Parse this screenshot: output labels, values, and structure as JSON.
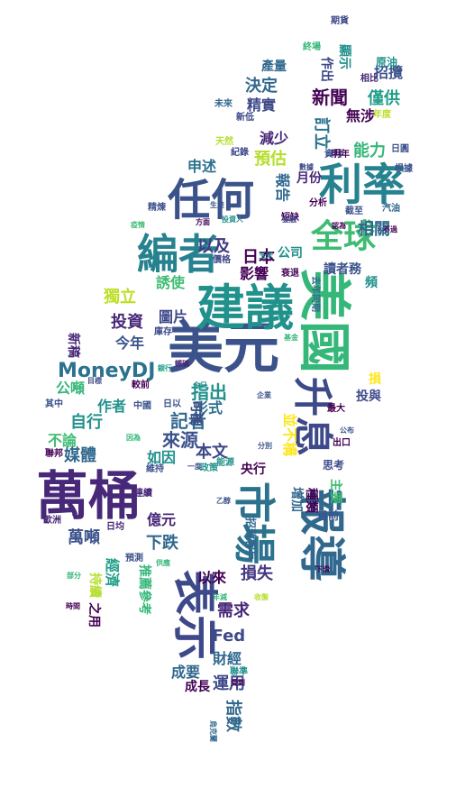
{
  "words": [
    {
      "text": "美元",
      "color": "#3b528b",
      "size": 62
    },
    {
      "text": "萬桶",
      "color": "#482878",
      "size": 58
    },
    {
      "text": "美國",
      "color": "#35b779",
      "size": 58,
      "vertical": true
    },
    {
      "text": "建議",
      "color": "#21918c",
      "size": 54
    },
    {
      "text": "報導",
      "color": "#31688e",
      "size": 52,
      "vertical": true
    },
    {
      "text": "表示",
      "color": "#3e4989",
      "size": 50,
      "vertical": true
    },
    {
      "text": "任何",
      "color": "#3b528b",
      "size": 48
    },
    {
      "text": "利率",
      "color": "#26828e",
      "size": 48
    },
    {
      "text": "市場",
      "color": "#2c728e",
      "size": 46,
      "vertical": true
    },
    {
      "text": "編者",
      "color": "#26828e",
      "size": 46
    },
    {
      "text": "升息",
      "color": "#3e4989",
      "size": 44,
      "vertical": true
    },
    {
      "text": "全球",
      "color": "#3fbc73",
      "size": 36
    },
    {
      "text": "MoneyDJ",
      "color": "#2c728e",
      "size": 22
    },
    {
      "text": "新聞",
      "color": "#440154",
      "size": 20
    },
    {
      "text": "指出",
      "color": "#21918c",
      "size": 20
    },
    {
      "text": "記者",
      "color": "#31688e",
      "size": 20
    },
    {
      "text": "來源",
      "color": "#3b528b",
      "size": 20
    },
    {
      "text": "決定",
      "color": "#31688e",
      "size": 18
    },
    {
      "text": "訂立",
      "color": "#2c728e",
      "size": 18,
      "vertical": true
    },
    {
      "text": "能力",
      "color": "#35b779",
      "size": 18
    },
    {
      "text": "預估",
      "color": "#b5de2b",
      "size": 18
    },
    {
      "text": "投資",
      "color": "#482878",
      "size": 18
    },
    {
      "text": "獨立",
      "color": "#bddf26",
      "size": 18
    },
    {
      "text": "自行",
      "color": "#21918c",
      "size": 18
    },
    {
      "text": "本文",
      "color": "#3e4989",
      "size": 18
    },
    {
      "text": "Fed",
      "color": "#3e4989",
      "size": 18
    },
    {
      "text": "萬噸",
      "color": "#3b528b",
      "size": 18
    },
    {
      "text": "下跌",
      "color": "#31688e",
      "size": 18
    },
    {
      "text": "損失",
      "color": "#443983",
      "size": 18
    },
    {
      "text": "需求",
      "color": "#482878",
      "size": 18
    },
    {
      "text": "指數",
      "color": "#31688e",
      "size": 18,
      "vertical": true
    },
    {
      "text": "運用",
      "color": "#3e4989",
      "size": 18
    },
    {
      "text": "日本",
      "color": "#440154",
      "size": 18
    },
    {
      "text": "以及",
      "color": "#443983",
      "size": 18
    },
    {
      "text": "相關",
      "color": "#31688e",
      "size": 18
    },
    {
      "text": "僅供",
      "color": "#1f9e89",
      "size": 18
    },
    {
      "text": "媒體",
      "color": "#31688e",
      "size": 18
    },
    {
      "text": "招攬",
      "color": "#3b528b",
      "size": 16
    },
    {
      "text": "精實",
      "color": "#3e4989",
      "size": 16
    },
    {
      "text": "無涉",
      "color": "#440154",
      "size": 16
    },
    {
      "text": "減少",
      "color": "#482878",
      "size": 16
    },
    {
      "text": "申述",
      "color": "#2c728e",
      "size": 16
    },
    {
      "text": "報告",
      "color": "#31688e",
      "size": 16,
      "vertical": true
    },
    {
      "text": "影響",
      "color": "#440154",
      "size": 16
    },
    {
      "text": "讀者務",
      "color": "#3b528b",
      "size": 14
    },
    {
      "text": "誘使",
      "color": "#3fbc73",
      "size": 16
    },
    {
      "text": "圖片",
      "color": "#3e4989",
      "size": 16
    },
    {
      "text": "今年",
      "color": "#3b528b",
      "size": 16
    },
    {
      "text": "作者",
      "color": "#21918c",
      "size": 16
    },
    {
      "text": "公噸",
      "color": "#35b779",
      "size": 16
    },
    {
      "text": "形式",
      "color": "#2c728e",
      "size": 16
    },
    {
      "text": "並不構",
      "color": "#fde725",
      "size": 16,
      "vertical": true
    },
    {
      "text": "如因",
      "color": "#21918c",
      "size": 16
    },
    {
      "text": "不論",
      "color": "#3fbc73",
      "size": 16
    },
    {
      "text": "億元",
      "color": "#482878",
      "size": 16
    },
    {
      "text": "以來",
      "color": "#440154",
      "size": 16
    },
    {
      "text": "成要",
      "color": "#31688e",
      "size": 16
    },
    {
      "text": "財經",
      "color": "#31688e",
      "size": 16
    },
    {
      "text": "經濟",
      "color": "#1f9e89",
      "size": 16,
      "vertical": true
    },
    {
      "text": "推薦參考",
      "color": "#35b779",
      "size": 14,
      "vertical": true
    },
    {
      "text": "產量",
      "color": "#31688e",
      "size": 14
    },
    {
      "text": "作出",
      "color": "#3e4989",
      "size": 14,
      "vertical": true
    },
    {
      "text": "顯示",
      "color": "#21918c",
      "size": 14,
      "vertical": true
    },
    {
      "text": "月份",
      "color": "#482878",
      "size": 14
    },
    {
      "text": "公司",
      "color": "#21918c",
      "size": 14
    },
    {
      "text": "央行",
      "color": "#440154",
      "size": 14
    },
    {
      "text": "主要",
      "color": "#3fbc73",
      "size": 14,
      "vertical": true
    },
    {
      "text": "可能",
      "color": "#3e4989",
      "size": 14,
      "vertical": true
    },
    {
      "text": "招致客戶",
      "color": "#31688e",
      "size": 12,
      "vertical": true
    },
    {
      "text": "成長",
      "color": "#440154",
      "size": 14
    },
    {
      "text": "增加",
      "color": "#31688e",
      "size": 14,
      "vertical": true
    },
    {
      "text": "種類",
      "color": "#440154",
      "size": 14,
      "vertical": true
    },
    {
      "text": "投與",
      "color": "#3e4989",
      "size": 14
    },
    {
      "text": "損",
      "color": "#fde725",
      "size": 14
    },
    {
      "text": "頻",
      "color": "#21918c",
      "size": 14
    },
    {
      "text": "新稿",
      "color": "#482878",
      "size": 14,
      "vertical": true
    },
    {
      "text": "之用",
      "color": "#440154",
      "size": 14,
      "vertical": true
    },
    {
      "text": "持續",
      "color": "#b5de2b",
      "size": 14,
      "vertical": true
    },
    {
      "text": "思考",
      "color": "#3e4989",
      "size": 12
    },
    {
      "text": "目前",
      "color": "#3b528b",
      "size": 12
    },
    {
      "text": "期貨",
      "color": "#3e4989",
      "size": 10
    },
    {
      "text": "終場",
      "color": "#35b779",
      "size": 10
    },
    {
      "text": "相比",
      "color": "#482878",
      "size": 10
    },
    {
      "text": "原油",
      "color": "#21918c",
      "size": 12
    },
    {
      "text": "年度",
      "color": "#bddf26",
      "size": 10
    },
    {
      "text": "未來",
      "color": "#31688e",
      "size": 10
    },
    {
      "text": "新低",
      "color": "#3e4989",
      "size": 10
    },
    {
      "text": "天然",
      "color": "#b5de2b",
      "size": 10
    },
    {
      "text": "紀錄",
      "color": "#3e4989",
      "size": 10
    },
    {
      "text": "資料",
      "color": "#3b528b",
      "size": 10
    },
    {
      "text": "日圓",
      "color": "#3b528b",
      "size": 10
    },
    {
      "text": "明年",
      "color": "#440154",
      "size": 10
    },
    {
      "text": "根據",
      "color": "#3b528b",
      "size": 10
    },
    {
      "text": "分析",
      "color": "#440154",
      "size": 10
    },
    {
      "text": "截至",
      "color": "#3b528b",
      "size": 10
    },
    {
      "text": "汽油",
      "color": "#31688e",
      "size": 10
    },
    {
      "text": "精煉",
      "color": "#3b528b",
      "size": 10
    },
    {
      "text": "生產",
      "color": "#3b528b",
      "size": 8
    },
    {
      "text": "疫情",
      "color": "#3fbc73",
      "size": 8
    },
    {
      "text": "投資人",
      "color": "#21918c",
      "size": 8
    },
    {
      "text": "短缺",
      "color": "#440154",
      "size": 10
    },
    {
      "text": "價格",
      "color": "#3e4989",
      "size": 10
    },
    {
      "text": "玉米",
      "color": "#21918c",
      "size": 8
    },
    {
      "text": "衰退",
      "color": "#440154",
      "size": 10
    },
    {
      "text": "認為",
      "color": "#440154",
      "size": 8
    },
    {
      "text": "不過",
      "color": "#440154",
      "size": 8
    },
    {
      "text": "去年同期",
      "color": "#31688e",
      "size": 10,
      "vertical": true
    },
    {
      "text": "庫存",
      "color": "#3e4989",
      "size": 10
    },
    {
      "text": "目標",
      "color": "#3e4989",
      "size": 8
    },
    {
      "text": "較前",
      "color": "#440154",
      "size": 10
    },
    {
      "text": "今日",
      "color": "#21918c",
      "size": 8
    },
    {
      "text": "日以",
      "color": "#3b528b",
      "size": 10
    },
    {
      "text": "中國",
      "color": "#3b528b",
      "size": 10
    },
    {
      "text": "其中",
      "color": "#3b528b",
      "size": 10
    },
    {
      "text": "最大",
      "color": "#440154",
      "size": 10
    },
    {
      "text": "公布",
      "color": "#3b528b",
      "size": 8
    },
    {
      "text": "出口",
      "color": "#440154",
      "size": 10
    },
    {
      "text": "能源",
      "color": "#21918c",
      "size": 10
    },
    {
      "text": "分別",
      "color": "#3b528b",
      "size": 8
    },
    {
      "text": "聯邦",
      "color": "#440154",
      "size": 10
    },
    {
      "text": "維持",
      "color": "#3b528b",
      "size": 10
    },
    {
      "text": "一度",
      "color": "#3b528b",
      "size": 8
    },
    {
      "text": "政策",
      "color": "#21918c",
      "size": 10
    },
    {
      "text": "因為",
      "color": "#35b779",
      "size": 8
    },
    {
      "text": "歐洲",
      "color": "#482878",
      "size": 10
    },
    {
      "text": "日均",
      "color": "#482878",
      "size": 10
    },
    {
      "text": "連續",
      "color": "#482878",
      "size": 10
    },
    {
      "text": "預測",
      "color": "#3b528b",
      "size": 10
    },
    {
      "text": "供應",
      "color": "#35b779",
      "size": 8
    },
    {
      "text": "年減",
      "color": "#35b779",
      "size": 8
    },
    {
      "text": "收盤",
      "color": "#b5de2b",
      "size": 8
    },
    {
      "text": "部分",
      "color": "#35b779",
      "size": 8
    },
    {
      "text": "時間",
      "color": "#440154",
      "size": 8
    },
    {
      "text": "聯準",
      "color": "#21918c",
      "size": 10
    },
    {
      "text": "受到",
      "color": "#440154",
      "size": 8
    },
    {
      "text": "烏克蘭",
      "color": "#31688e",
      "size": 8,
      "vertical": true
    },
    {
      "text": "基金",
      "color": "#35b779",
      "size": 8
    },
    {
      "text": "企業",
      "color": "#3b528b",
      "size": 8
    },
    {
      "text": "銀行",
      "color": "#1f9e89",
      "size": 8
    },
    {
      "text": "方面",
      "color": "#440154",
      "size": 8
    },
    {
      "text": "數據",
      "color": "#3e4989",
      "size": 8
    },
    {
      "text": "金融",
      "color": "#3e4989",
      "size": 8
    },
    {
      "text": "鐵礦",
      "color": "#482878",
      "size": 8
    },
    {
      "text": "下滑",
      "color": "#440154",
      "size": 8
    },
    {
      "text": "乙醇",
      "color": "#3b528b",
      "size": 8
    }
  ]
}
